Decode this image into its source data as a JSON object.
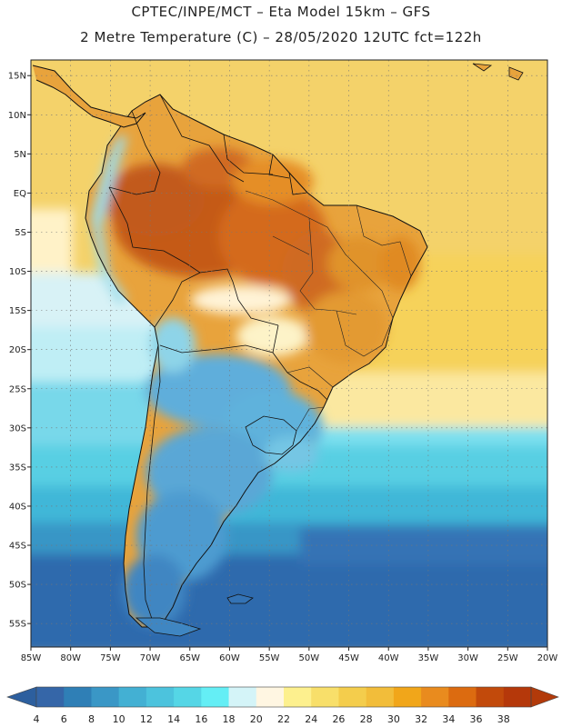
{
  "header": {
    "line1": "CPTEC/INPE/MCT  –   Eta Model 15km  –  GFS",
    "line2": "2 Metre Temperature (C)  –  28/05/2020 12UTC fct=122h"
  },
  "map": {
    "region": "South America",
    "lon_range": [
      -85,
      -20
    ],
    "lat_range": [
      -58,
      17
    ],
    "lat_labels": [
      "15N",
      "10N",
      "5N",
      "EQ",
      "5S",
      "10S",
      "15S",
      "20S",
      "25S",
      "30S",
      "35S",
      "40S",
      "45S",
      "50S",
      "55S"
    ],
    "lat_values": [
      15,
      10,
      5,
      0,
      -5,
      -10,
      -15,
      -20,
      -25,
      -30,
      -35,
      -40,
      -45,
      -50,
      -55
    ],
    "lon_labels": [
      "85W",
      "80W",
      "75W",
      "70W",
      "65W",
      "60W",
      "55W",
      "50W",
      "45W",
      "40W",
      "35W",
      "30W",
      "25W",
      "20W"
    ],
    "lon_values": [
      -85,
      -80,
      -75,
      -70,
      -65,
      -60,
      -55,
      -50,
      -45,
      -40,
      -35,
      -30,
      -25,
      -20
    ]
  },
  "colorbar": {
    "labels": [
      "4",
      "6",
      "8",
      "10",
      "12",
      "14",
      "16",
      "18",
      "20",
      "22",
      "24",
      "26",
      "28",
      "30",
      "32",
      "34",
      "36",
      "38"
    ],
    "colors": [
      "#3566a8",
      "#2f7fb6",
      "#3a97c6",
      "#43b0d3",
      "#4cc3dd",
      "#55d6e6",
      "#64eef5",
      "#d4f4f8",
      "#fff6e2",
      "#fdf08e",
      "#f8df6a",
      "#f4cd4c",
      "#f2bd3a",
      "#f1a61a",
      "#e98b1e",
      "#dc6b10",
      "#c24a0b",
      "#b5380a"
    ],
    "low_color": "#2d5f9e",
    "high_color": "#b23a0a"
  }
}
